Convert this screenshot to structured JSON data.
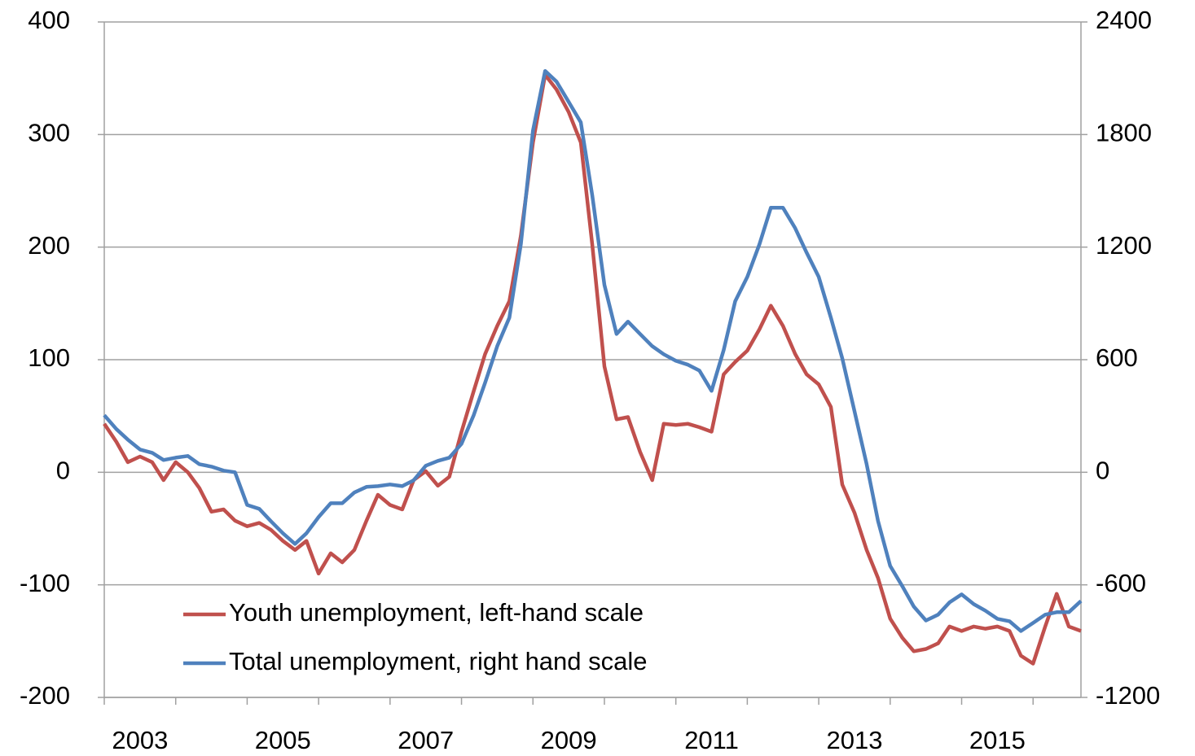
{
  "chart_data": {
    "type": "line",
    "x": [
      2003.0,
      2003.17,
      2003.33,
      2003.5,
      2003.67,
      2003.83,
      2004.0,
      2004.17,
      2004.33,
      2004.5,
      2004.67,
      2004.83,
      2005.0,
      2005.17,
      2005.33,
      2005.5,
      2005.67,
      2005.83,
      2006.0,
      2006.17,
      2006.33,
      2006.5,
      2006.67,
      2006.83,
      2007.0,
      2007.17,
      2007.33,
      2007.5,
      2007.67,
      2007.83,
      2008.0,
      2008.17,
      2008.33,
      2008.5,
      2008.67,
      2008.83,
      2009.0,
      2009.17,
      2009.33,
      2009.5,
      2009.67,
      2009.83,
      2010.0,
      2010.17,
      2010.33,
      2010.5,
      2010.67,
      2010.83,
      2011.0,
      2011.17,
      2011.33,
      2011.5,
      2011.67,
      2011.83,
      2012.0,
      2012.17,
      2012.33,
      2012.5,
      2012.67,
      2012.83,
      2013.0,
      2013.17,
      2013.33,
      2013.5,
      2013.67,
      2013.83,
      2014.0,
      2014.17,
      2014.33,
      2014.5,
      2014.67,
      2014.83,
      2015.0,
      2015.17,
      2015.33,
      2015.5,
      2015.67,
      2015.83,
      2016.0,
      2016.17,
      2016.33,
      2016.5,
      2016.67
    ],
    "series": [
      {
        "name": "Youth unemployment, left-hand scale",
        "color": "#c0504d",
        "axis": "y",
        "values": [
          43,
          27,
          9,
          14,
          9,
          -7,
          9,
          0,
          -14,
          -35,
          -33,
          -43,
          -48,
          -45,
          -51,
          -61,
          -69,
          -61,
          -90,
          -72,
          -80,
          -69,
          -43,
          -20,
          -29,
          -33,
          -7,
          1,
          -12,
          -4,
          36,
          72,
          105,
          130,
          152,
          210,
          293,
          353,
          340,
          320,
          293,
          202,
          94,
          47,
          49,
          18,
          -7,
          43,
          42,
          43,
          40,
          36,
          87,
          98,
          108,
          127,
          148,
          130,
          105,
          87,
          78,
          58,
          -11,
          -36,
          -69,
          -94,
          -130,
          -147,
          -159,
          -157,
          -152,
          -137,
          -141,
          -137,
          -139,
          -137,
          -141,
          -163,
          -170,
          -137,
          -108,
          -137,
          -141
        ]
      },
      {
        "name": "Total unemployment, right hand scale",
        "color": "#4f81bd",
        "axis": "y2",
        "values": [
          304,
          230,
          174,
          121,
          104,
          65,
          78,
          87,
          43,
          30,
          9,
          0,
          -174,
          -195,
          -260,
          -325,
          -382,
          -325,
          -239,
          -165,
          -165,
          -108,
          -78,
          -74,
          -65,
          -74,
          -43,
          35,
          61,
          78,
          152,
          304,
          477,
          672,
          824,
          1215,
          1822,
          2139,
          2082,
          1974,
          1865,
          1475,
          998,
          737,
          803,
          737,
          672,
          629,
          594,
          573,
          542,
          434,
          651,
          911,
          1041,
          1215,
          1410,
          1410,
          1301,
          1171,
          1041,
          824,
          607,
          325,
          43,
          -260,
          -499,
          -607,
          -716,
          -790,
          -759,
          -694,
          -651,
          -703,
          -737,
          -781,
          -794,
          -846,
          -803,
          -759,
          -746,
          -746,
          -686
        ]
      }
    ],
    "xlim": [
      2003,
      2016.67
    ],
    "xticks": [
      {
        "value": 2003.5,
        "label": "2003"
      },
      {
        "value": 2005.5,
        "label": "2005"
      },
      {
        "value": 2007.5,
        "label": "2007"
      },
      {
        "value": 2009.5,
        "label": "2009"
      },
      {
        "value": 2011.5,
        "label": "2011"
      },
      {
        "value": 2013.5,
        "label": "2013"
      },
      {
        "value": 2015.5,
        "label": "2015"
      }
    ],
    "xtick_marks": [
      2003,
      2004,
      2005,
      2006,
      2007,
      2008,
      2009,
      2010,
      2011,
      2012,
      2013,
      2014,
      2015,
      2016
    ],
    "ylim": [
      -200,
      400
    ],
    "yticks": [
      -200,
      -100,
      0,
      100,
      200,
      300,
      400
    ],
    "y2lim": [
      -1200,
      2400
    ],
    "y2ticks": [
      -1200,
      -600,
      0,
      600,
      1200,
      1800,
      2400
    ],
    "grid": true,
    "legend": "lower center"
  }
}
